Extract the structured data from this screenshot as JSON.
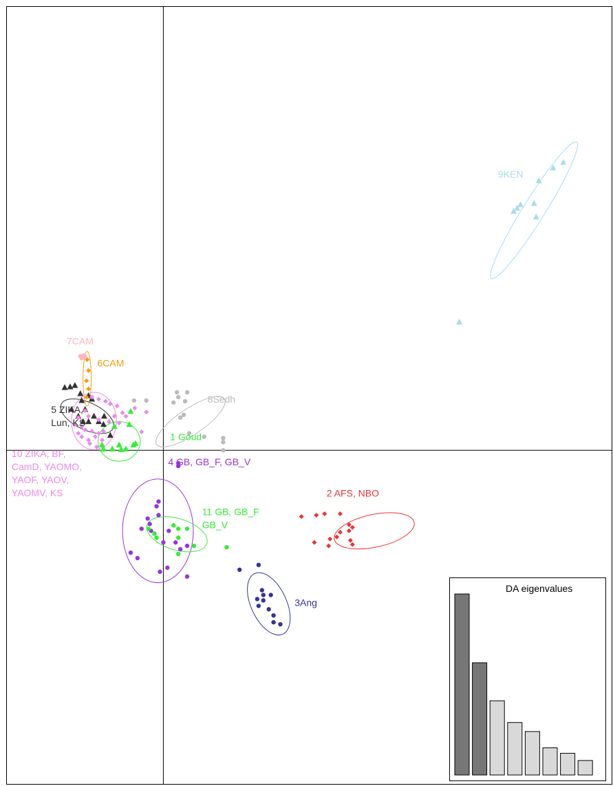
{
  "chart_data": {
    "type": "scatter",
    "title": "",
    "xlabel": "",
    "ylabel": "",
    "xlim": [
      -2.3,
      6.6
    ],
    "ylim": [
      -4.9,
      6.5
    ],
    "axes_origin": [
      0,
      0
    ],
    "grid": false,
    "groups": [
      {
        "name": "1",
        "label": "1 Goud",
        "color": "#33ee33",
        "shape": "triangle",
        "label_pos": [
          0.1,
          0.15
        ],
        "ellipse": {
          "cx": -0.65,
          "cy": 0.13,
          "rx": 0.31,
          "ry": 0.29,
          "angle": 0
        },
        "points": [
          [
            -0.88,
            0.02
          ],
          [
            -0.75,
            0.02
          ],
          [
            -0.62,
            0.01
          ],
          [
            -0.55,
            0.02
          ],
          [
            -0.9,
            0.08
          ],
          [
            -0.65,
            0.08
          ],
          [
            -0.44,
            0.08
          ],
          [
            -0.41,
            0.1
          ],
          [
            -0.72,
            0.35
          ],
          [
            -0.5,
            0.38
          ],
          [
            -0.48,
            0.57
          ]
        ]
      },
      {
        "name": "2",
        "label": "2 AFS, NBO",
        "color": "#ee3333",
        "shape": "diamond",
        "label_pos": [
          2.4,
          -0.68
        ],
        "ellipse": {
          "cx": 3.1,
          "cy": -1.18,
          "rx": 0.6,
          "ry": 0.24,
          "angle": -12
        },
        "points": [
          [
            2.03,
            -0.97
          ],
          [
            2.25,
            -0.95
          ],
          [
            2.37,
            -0.93
          ],
          [
            2.6,
            -0.93
          ],
          [
            2.73,
            -1.09
          ],
          [
            2.78,
            -1.13
          ],
          [
            2.73,
            -1.18
          ],
          [
            2.6,
            -1.2
          ],
          [
            2.55,
            -1.27
          ],
          [
            2.45,
            -1.3
          ],
          [
            2.22,
            -1.35
          ],
          [
            2.75,
            -1.32
          ],
          [
            2.78,
            -1.38
          ],
          [
            2.43,
            -1.4
          ]
        ]
      },
      {
        "name": "3",
        "label": "3Ang",
        "color": "#333399",
        "shape": "circle",
        "label_pos": [
          1.93,
          -2.28
        ],
        "ellipse": {
          "cx": 1.55,
          "cy": -2.25,
          "rx": 0.26,
          "ry": 0.49,
          "angle": -25
        },
        "points": [
          [
            1.12,
            -1.75
          ],
          [
            1.4,
            -1.68
          ],
          [
            1.45,
            -2.05
          ],
          [
            1.47,
            -2.12
          ],
          [
            1.47,
            -2.2
          ],
          [
            1.38,
            -2.18
          ],
          [
            1.4,
            -2.28
          ],
          [
            1.55,
            -2.33
          ],
          [
            1.58,
            -2.12
          ],
          [
            1.62,
            -2.42
          ],
          [
            1.62,
            -2.52
          ],
          [
            1.72,
            -2.55
          ]
        ]
      },
      {
        "name": "4",
        "label": "4 GB, GB_F, GB_V",
        "color": "#9933dd",
        "shape": "circle",
        "label_pos": [
          0.07,
          -0.22
        ],
        "ellipse": {
          "cx": -0.08,
          "cy": -1.18,
          "rx": 0.52,
          "ry": 0.76,
          "angle": 0
        },
        "points": [
          [
            -0.07,
            -0.75
          ],
          [
            -0.1,
            -0.82
          ],
          [
            -0.07,
            -0.95
          ],
          [
            -0.23,
            -1.0
          ],
          [
            -0.2,
            -1.08
          ],
          [
            -0.32,
            -1.15
          ],
          [
            -0.18,
            -1.18
          ],
          [
            0.08,
            -1.18
          ],
          [
            0.0,
            -1.35
          ],
          [
            0.18,
            -1.35
          ],
          [
            0.25,
            -1.45
          ],
          [
            0.35,
            -1.4
          ],
          [
            -0.48,
            -1.5
          ],
          [
            -0.38,
            -1.58
          ],
          [
            0.06,
            -1.72
          ],
          [
            -0.05,
            -1.78
          ],
          [
            0.35,
            -1.85
          ],
          [
            0.22,
            -0.23
          ],
          [
            0.22,
            -0.19
          ]
        ]
      },
      {
        "name": "5",
        "label": "5 ZIKA,\nLun, KS",
        "color": "#333333",
        "shape": "triangle",
        "label_pos": [
          -1.65,
          0.55
        ],
        "ellipse": {
          "cx": -1.12,
          "cy": 0.5,
          "rx": 0.42,
          "ry": 0.2,
          "angle": 25
        },
        "points": [
          [
            -1.45,
            0.92
          ],
          [
            -1.37,
            0.93
          ],
          [
            -1.3,
            0.95
          ],
          [
            -1.22,
            0.83
          ],
          [
            -1.2,
            0.73
          ],
          [
            -1.1,
            0.8
          ],
          [
            -1.05,
            0.75
          ],
          [
            -1.35,
            0.6
          ],
          [
            -1.25,
            0.5
          ],
          [
            -1.18,
            0.42
          ],
          [
            -1.1,
            0.42
          ],
          [
            -1.02,
            0.5
          ],
          [
            -0.95,
            0.42
          ],
          [
            -0.88,
            0.38
          ],
          [
            -0.78,
            0.22
          ],
          [
            -0.87,
            0.5
          ],
          [
            -1.15,
            0.6
          ]
        ]
      },
      {
        "name": "6",
        "label": "6CAM",
        "color": "#f39c12",
        "shape": "diamond",
        "label_pos": [
          -0.97,
          1.23
        ],
        "ellipse": {
          "cx": -1.12,
          "cy": 1.05,
          "rx": 0.06,
          "ry": 0.4,
          "angle": 0
        },
        "points": [
          [
            -1.12,
            1.33
          ],
          [
            -1.1,
            1.17
          ],
          [
            -1.13,
            1.02
          ],
          [
            -1.1,
            0.9
          ],
          [
            -1.13,
            0.78
          ]
        ]
      },
      {
        "name": "7",
        "label": "7CAM",
        "color": "#ffb6c1",
        "shape": "circle",
        "label_pos": [
          -1.42,
          1.55
        ],
        "ellipse": null,
        "points": [
          [
            -1.22,
            1.38
          ],
          [
            -1.18,
            1.39
          ],
          [
            -1.15,
            1.37
          ],
          [
            -1.2,
            1.35
          ]
        ]
      },
      {
        "name": "8",
        "label": "8Sedh",
        "color": "#bbbbbb",
        "shape": "circle",
        "label_pos": [
          0.65,
          0.7
        ],
        "ellipse": {
          "cx": 0.4,
          "cy": 0.42,
          "rx": 0.6,
          "ry": 0.19,
          "angle": -34
        },
        "points": [
          [
            -0.43,
            0.73
          ],
          [
            -0.25,
            0.73
          ],
          [
            0.2,
            0.85
          ],
          [
            0.35,
            0.85
          ],
          [
            0.22,
            0.78
          ],
          [
            0.32,
            0.72
          ],
          [
            0.15,
            0.7
          ],
          [
            0.3,
            0.52
          ],
          [
            0.25,
            0.48
          ],
          [
            0.6,
            0.2
          ],
          [
            0.88,
            0.18
          ],
          [
            0.88,
            0.12
          ],
          [
            0.88,
            0.0
          ],
          [
            0.38,
            0.25
          ]
        ]
      },
      {
        "name": "9",
        "label": "9KEN",
        "color": "#aaddee",
        "shape": "triangle",
        "label_pos": [
          4.92,
          4.0
        ],
        "ellipse": {
          "cx": 5.45,
          "cy": 3.52,
          "rx": 0.16,
          "ry": 1.18,
          "angle": 32
        },
        "points": [
          [
            5.88,
            4.22
          ],
          [
            5.73,
            4.14
          ],
          [
            5.52,
            3.95
          ],
          [
            5.2,
            3.55
          ],
          [
            5.25,
            3.6
          ],
          [
            5.45,
            3.62
          ],
          [
            5.48,
            3.42
          ],
          [
            5.15,
            3.5
          ],
          [
            4.35,
            1.88
          ]
        ]
      },
      {
        "name": "10",
        "label": "10 ZIKA, BF,\nCamD, YAOMO,\nYAOF, YAOV,\nYAOMV, KS",
        "color": "#ee88ee",
        "shape": "diamond",
        "label_pos": [
          -2.23,
          -0.1
        ],
        "ellipse": {
          "cx": -1.02,
          "cy": 0.43,
          "rx": 0.33,
          "ry": 0.42,
          "angle": 0
        },
        "points": [
          [
            -1.05,
            0.78
          ],
          [
            -0.95,
            0.75
          ],
          [
            -0.85,
            0.72
          ],
          [
            -0.78,
            0.68
          ],
          [
            -0.72,
            0.5
          ],
          [
            -0.8,
            0.42
          ],
          [
            -0.95,
            0.45
          ],
          [
            -1.1,
            0.5
          ],
          [
            -1.2,
            0.35
          ],
          [
            -1.15,
            0.3
          ],
          [
            -1.05,
            0.28
          ],
          [
            -0.95,
            0.25
          ],
          [
            -0.9,
            0.15
          ],
          [
            -1.0,
            0.2
          ],
          [
            -1.1,
            0.15
          ],
          [
            -1.2,
            0.2
          ],
          [
            -1.25,
            0.25
          ],
          [
            -1.3,
            0.38
          ],
          [
            -1.25,
            0.48
          ],
          [
            -1.15,
            0.58
          ],
          [
            -1.08,
            0.1
          ],
          [
            -0.98,
            0.05
          ],
          [
            -0.88,
            0.28
          ],
          [
            -0.65,
            0.4
          ],
          [
            -0.6,
            0.55
          ],
          [
            -0.55,
            0.5
          ],
          [
            -0.42,
            0.62
          ],
          [
            -0.25,
            0.56
          ],
          [
            -0.32,
            0.27
          ],
          [
            -0.68,
            0.65
          ]
        ]
      },
      {
        "name": "11",
        "label": "11 GB, GB_F\nGB_V",
        "color": "#33ee33",
        "shape": "circle",
        "label_pos": [
          0.57,
          -0.95
        ],
        "ellipse": {
          "cx": 0.2,
          "cy": -1.23,
          "rx": 0.46,
          "ry": 0.23,
          "angle": 17
        },
        "points": [
          [
            -0.22,
            -1.15
          ],
          [
            -0.13,
            -1.22
          ],
          [
            -0.1,
            -1.28
          ],
          [
            0.15,
            -1.1
          ],
          [
            0.22,
            -1.15
          ],
          [
            0.35,
            -1.15
          ],
          [
            0.22,
            -1.28
          ],
          [
            0.45,
            -1.4
          ],
          [
            0.22,
            -1.52
          ],
          [
            0.93,
            -1.42
          ]
        ]
      }
    ],
    "inset": {
      "title": "DA eigenvalues",
      "type": "bar",
      "values": [
        100,
        62,
        41,
        29,
        24,
        15,
        12,
        8
      ],
      "retained": 2,
      "colors": {
        "retained": "#777777",
        "other": "#d9d9d9"
      }
    }
  }
}
